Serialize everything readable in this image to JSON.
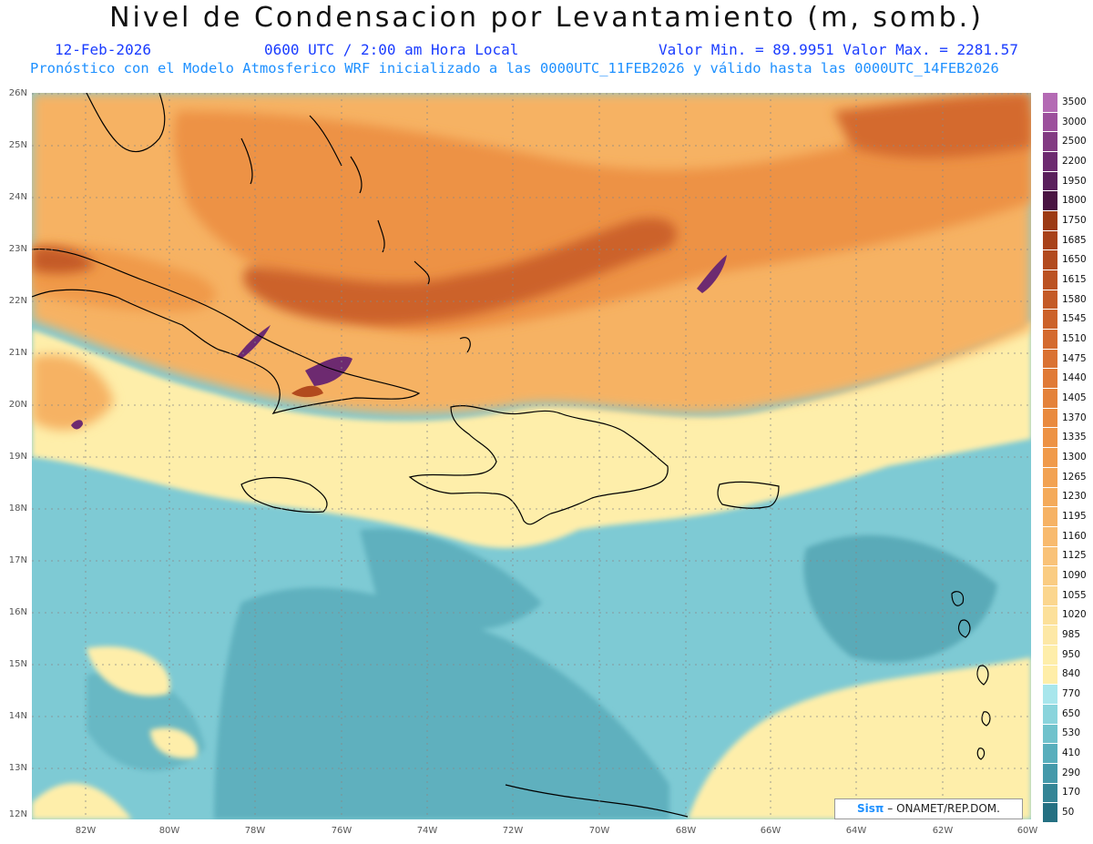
{
  "header": {
    "title": "Nivel de Condensacion por Levantamiento (m, somb.)",
    "date": "12-Feb-2026",
    "time": "0600 UTC / 2:00 am Hora Local",
    "minmax": "Valor Min. = 89.9951  Valor Max. = 2281.57",
    "description": "Pronóstico con el Modelo Atmosferico WRF inicializado a las 0000UTC_11FEB2026 y válido hasta las  0000UTC_14FEB2026"
  },
  "axes": {
    "lat_labels": [
      "26N",
      "25N",
      "24N",
      "23N",
      "22N",
      "21N",
      "20N",
      "19N",
      "18N",
      "17N",
      "16N",
      "15N",
      "14N",
      "13N",
      "12N"
    ],
    "lon_labels": [
      "82W",
      "80W",
      "78W",
      "76W",
      "74W",
      "72W",
      "70W",
      "68W",
      "66W",
      "64W",
      "62W",
      "60W"
    ]
  },
  "colorbar": {
    "levels": [
      "3500",
      "3000",
      "2500",
      "2200",
      "1950",
      "1800",
      "1750",
      "1685",
      "1650",
      "1615",
      "1580",
      "1545",
      "1510",
      "1475",
      "1440",
      "1405",
      "1370",
      "1335",
      "1300",
      "1265",
      "1230",
      "1195",
      "1160",
      "1125",
      "1090",
      "1055",
      "1020",
      "985",
      "950",
      "840",
      "770",
      "650",
      "530",
      "410",
      "290",
      "170",
      "50"
    ],
    "colors": [
      "#b46ab4",
      "#9c4f9c",
      "#823a82",
      "#6d2a70",
      "#5a1f5c",
      "#4a1442",
      "#9c3a14",
      "#a8421a",
      "#b24a1e",
      "#bb5222",
      "#c45a26",
      "#cc622a",
      "#d46a2e",
      "#da7232",
      "#e07a36",
      "#e4823a",
      "#e98a3e",
      "#ed9244",
      "#f09a4a",
      "#f2a252",
      "#f4aa5a",
      "#f6b264",
      "#f8ba6e",
      "#f9c278",
      "#facc82",
      "#fbd68e",
      "#fce09a",
      "#fde8a6",
      "#feeeaa",
      "#ffeea8",
      "#a8e6ec",
      "#8ad4dc",
      "#70c2cc",
      "#58aebc",
      "#4499aa",
      "#348596",
      "#247082"
    ]
  },
  "credit": {
    "brand": "Sisπ",
    "text": "– ONAMET/REP.DOM."
  }
}
